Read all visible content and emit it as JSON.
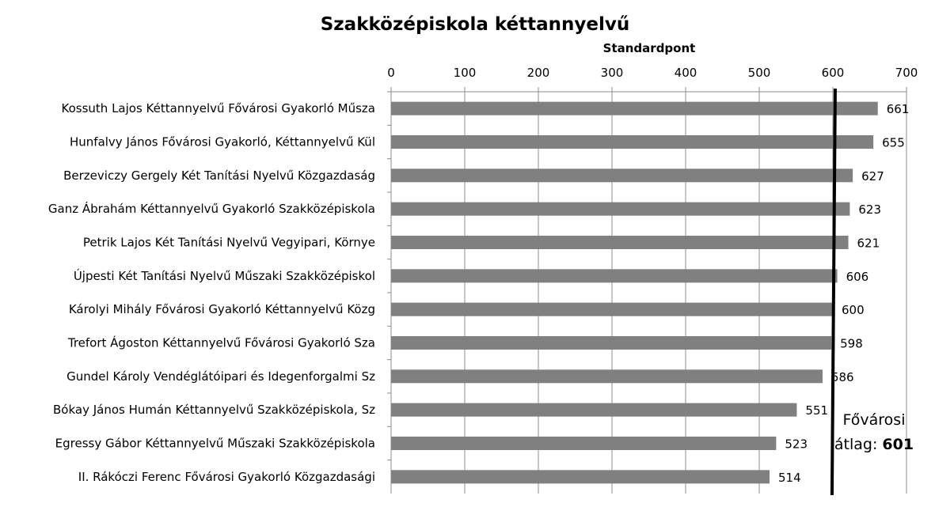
{
  "chart_data": {
    "type": "bar",
    "orientation": "horizontal",
    "title": "Szakközépiskola kéttannyelvű",
    "xlabel": "Standardpont",
    "ylabel": "",
    "xlim": [
      0,
      700
    ],
    "x_ticks": [
      "0",
      "100",
      "200",
      "300",
      "400",
      "500",
      "600",
      "700"
    ],
    "x_tick_values": [
      0,
      100,
      200,
      300,
      400,
      500,
      600,
      700
    ],
    "grid": true,
    "bar_color": "#808080",
    "categories": [
      "Kossuth Lajos Kéttannyelvű Fővárosi Gyakorló Műsza",
      "Hunfalvy János Fővárosi Gyakorló, Kéttannyelvű Kül",
      "Berzeviczy Gergely Két Tanítási Nyelvű Közgazdaság",
      "Ganz Ábrahám Kéttannyelvű Gyakorló Szakközépiskola",
      "Petrik Lajos Két Tanítási Nyelvű Vegyipari, Környe",
      "Újpesti Két Tanítási Nyelvű Műszaki Szakközépiskol",
      "Károlyi Mihály Fővárosi Gyakorló Kéttannyelvű Közg",
      "Trefort Ágoston Kéttannyelvű Fővárosi Gyakorló Sza",
      "Gundel Károly Vendéglátóipari és Idegenforgalmi Sz",
      "Bókay János Humán Kéttannyelvű Szakközépiskola, Sz",
      "Egressy Gábor Kéttannyelvű Műszaki Szakközépiskola",
      "II. Rákóczi Ferenc Fővárosi Gyakorló Közgazdasági"
    ],
    "values": [
      661,
      655,
      627,
      623,
      621,
      606,
      600,
      598,
      586,
      551,
      523,
      514
    ],
    "value_labels": [
      "661",
      "655",
      "627",
      "623",
      "621",
      "606",
      "600",
      "598",
      "586",
      "551",
      "523",
      "514"
    ],
    "reference_line": {
      "value": 601,
      "label_prefix": "Fővárosi átlag: ",
      "label_value": "601",
      "color": "#000000"
    }
  }
}
